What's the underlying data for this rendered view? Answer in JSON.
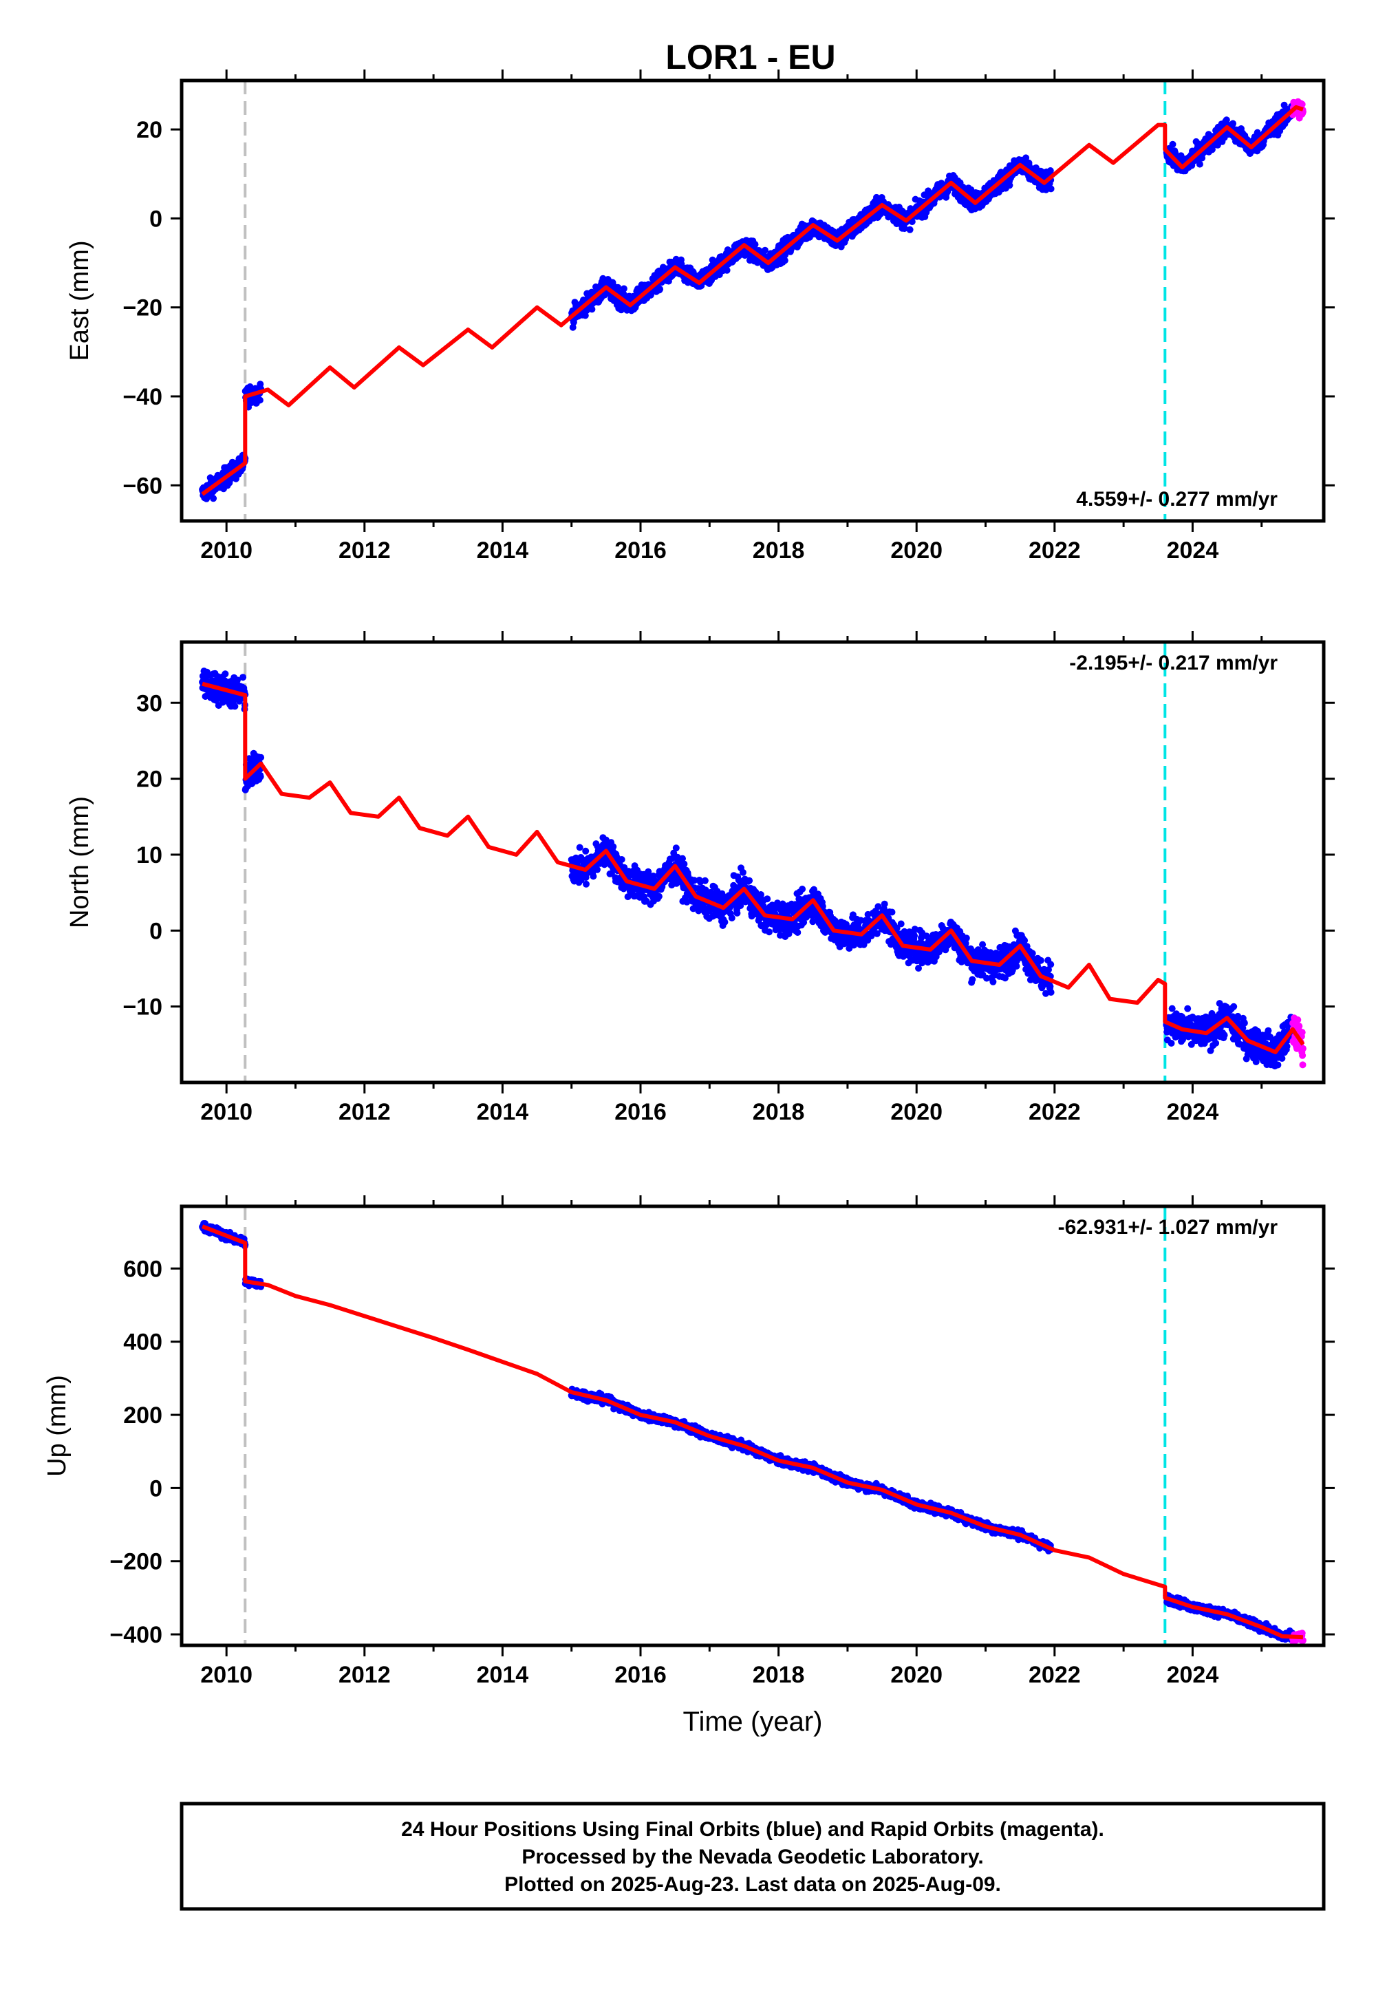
{
  "chart_data": {
    "type": "scatter",
    "title": "LOR1 - EU",
    "x_ticks": [
      "2010",
      "2012",
      "2014",
      "2016",
      "2018",
      "2020",
      "2022",
      "2024"
    ],
    "xlim": [
      2009.35,
      2025.9
    ],
    "xlabel": "Time (year)",
    "colors": {
      "final": "#0000ff",
      "rapid": "#ff00ff",
      "model": "#ff0000",
      "break_equipment": "#c0c0c0",
      "break_other": "#00e5e5"
    },
    "breaks": [
      {
        "x": 2010.27,
        "color": "gray"
      },
      {
        "x": 2023.6,
        "color": "cyan"
      }
    ],
    "panels": [
      {
        "component": "East",
        "ylabel": "East (mm)",
        "ylim": [
          -68,
          31
        ],
        "yticks": [
          "-60",
          "-40",
          "-20",
          "0",
          "20"
        ],
        "rate": "4.559+/- 0.277 mm/yr",
        "data_segments": [
          [
            2009.65,
            2010.5
          ],
          [
            2015.0,
            2021.95
          ],
          [
            2023.62,
            2025.6
          ]
        ],
        "rapid_segment": [
          2025.45,
          2025.6
        ],
        "model": [
          [
            2009.65,
            -62
          ],
          [
            2010.27,
            -55
          ],
          [
            2010.27,
            -40
          ],
          [
            2010.6,
            -38.5
          ],
          [
            2010.9,
            -42
          ],
          [
            2011.5,
            -33.5
          ],
          [
            2011.85,
            -38
          ],
          [
            2012.5,
            -29
          ],
          [
            2012.85,
            -33
          ],
          [
            2013.5,
            -25
          ],
          [
            2013.85,
            -29
          ],
          [
            2014.5,
            -20
          ],
          [
            2014.85,
            -24
          ],
          [
            2015.5,
            -15.5
          ],
          [
            2015.85,
            -19.5
          ],
          [
            2016.5,
            -11
          ],
          [
            2016.85,
            -14.5
          ],
          [
            2017.5,
            -6
          ],
          [
            2017.85,
            -10
          ],
          [
            2018.5,
            -1.5
          ],
          [
            2018.85,
            -5
          ],
          [
            2019.5,
            3
          ],
          [
            2019.85,
            -0.5
          ],
          [
            2020.5,
            8
          ],
          [
            2020.85,
            3.5
          ],
          [
            2021.5,
            12
          ],
          [
            2021.85,
            8
          ],
          [
            2022.5,
            16.5
          ],
          [
            2022.85,
            12.5
          ],
          [
            2023.5,
            21
          ],
          [
            2023.6,
            21
          ],
          [
            2023.6,
            15.5
          ],
          [
            2023.85,
            11.5
          ],
          [
            2024.5,
            20.5
          ],
          [
            2024.85,
            16
          ],
          [
            2025.5,
            25
          ],
          [
            2025.6,
            24.5
          ]
        ],
        "seasonal_amp": 2.0,
        "noise": 1.5
      },
      {
        "component": "North",
        "ylabel": "North (mm)",
        "ylim": [
          -20,
          38
        ],
        "yticks": [
          "-10",
          "0",
          "10",
          "20",
          "30"
        ],
        "rate": "-2.195+/- 0.217 mm/yr",
        "data_segments": [
          [
            2009.65,
            2010.5
          ],
          [
            2015.0,
            2021.95
          ],
          [
            2023.62,
            2025.6
          ]
        ],
        "rapid_segment": [
          2025.45,
          2025.6
        ],
        "model": [
          [
            2009.65,
            32.5
          ],
          [
            2010.27,
            31
          ],
          [
            2010.27,
            20
          ],
          [
            2010.5,
            22
          ],
          [
            2010.8,
            18
          ],
          [
            2011.2,
            17.5
          ],
          [
            2011.5,
            19.5
          ],
          [
            2011.8,
            15.5
          ],
          [
            2012.2,
            15
          ],
          [
            2012.5,
            17.5
          ],
          [
            2012.8,
            13.5
          ],
          [
            2013.2,
            12.5
          ],
          [
            2013.5,
            15
          ],
          [
            2013.8,
            11
          ],
          [
            2014.2,
            10
          ],
          [
            2014.5,
            13
          ],
          [
            2014.8,
            9
          ],
          [
            2015.2,
            8
          ],
          [
            2015.5,
            10.5
          ],
          [
            2015.8,
            6.5
          ],
          [
            2016.2,
            5.5
          ],
          [
            2016.5,
            8.5
          ],
          [
            2016.8,
            4.5
          ],
          [
            2017.2,
            3
          ],
          [
            2017.5,
            5.5
          ],
          [
            2017.8,
            2
          ],
          [
            2018.2,
            1.5
          ],
          [
            2018.5,
            4
          ],
          [
            2018.8,
            0
          ],
          [
            2019.2,
            -0.5
          ],
          [
            2019.5,
            2
          ],
          [
            2019.8,
            -2
          ],
          [
            2020.2,
            -2.5
          ],
          [
            2020.5,
            0
          ],
          [
            2020.8,
            -4
          ],
          [
            2021.2,
            -4.5
          ],
          [
            2021.5,
            -2
          ],
          [
            2021.8,
            -6
          ],
          [
            2022.2,
            -7.5
          ],
          [
            2022.5,
            -4.5
          ],
          [
            2022.8,
            -9
          ],
          [
            2023.2,
            -9.5
          ],
          [
            2023.5,
            -6.5
          ],
          [
            2023.6,
            -7
          ],
          [
            2023.6,
            -12
          ],
          [
            2023.85,
            -13
          ],
          [
            2024.2,
            -13.5
          ],
          [
            2024.5,
            -11.5
          ],
          [
            2024.8,
            -14.5
          ],
          [
            2025.2,
            -16
          ],
          [
            2025.45,
            -13
          ],
          [
            2025.6,
            -15
          ]
        ],
        "seasonal_amp": 0,
        "noise": 1.5
      },
      {
        "component": "Up",
        "ylabel": "Up (mm)",
        "ylim": [
          -430,
          770
        ],
        "yticks": [
          "-400",
          "-200",
          "0",
          "200",
          "400",
          "600"
        ],
        "rate": "-62.931+/- 1.027 mm/yr",
        "data_segments": [
          [
            2009.65,
            2010.5
          ],
          [
            2015.0,
            2021.95
          ],
          [
            2023.62,
            2025.6
          ]
        ],
        "rapid_segment": [
          2025.45,
          2025.6
        ],
        "model": [
          [
            2009.65,
            715
          ],
          [
            2010.27,
            670
          ],
          [
            2010.27,
            565
          ],
          [
            2010.6,
            555
          ],
          [
            2011.0,
            525
          ],
          [
            2011.5,
            500
          ],
          [
            2012.0,
            470
          ],
          [
            2012.5,
            440
          ],
          [
            2013.0,
            410
          ],
          [
            2013.5,
            378
          ],
          [
            2014.0,
            345
          ],
          [
            2014.5,
            312
          ],
          [
            2015.0,
            262
          ],
          [
            2015.5,
            240
          ],
          [
            2016.0,
            200
          ],
          [
            2016.5,
            180
          ],
          [
            2017.0,
            142
          ],
          [
            2017.5,
            115
          ],
          [
            2018.0,
            75
          ],
          [
            2018.5,
            55
          ],
          [
            2019.0,
            15
          ],
          [
            2019.5,
            -5
          ],
          [
            2020.0,
            -45
          ],
          [
            2020.5,
            -68
          ],
          [
            2021.0,
            -105
          ],
          [
            2021.5,
            -128
          ],
          [
            2022.0,
            -170
          ],
          [
            2022.5,
            -190
          ],
          [
            2023.0,
            -235
          ],
          [
            2023.6,
            -270
          ],
          [
            2023.6,
            -300
          ],
          [
            2024.0,
            -325
          ],
          [
            2024.5,
            -345
          ],
          [
            2025.0,
            -380
          ],
          [
            2025.3,
            -405
          ],
          [
            2025.6,
            -408
          ]
        ],
        "seasonal_amp": 0,
        "noise": 8
      }
    ]
  },
  "footer": {
    "line1": "24 Hour Positions Using Final Orbits (blue) and Rapid Orbits (magenta).",
    "line2": "Processed by the Nevada Geodetic Laboratory.",
    "line3": "Plotted on 2025-Aug-23. Last data on 2025-Aug-09."
  }
}
